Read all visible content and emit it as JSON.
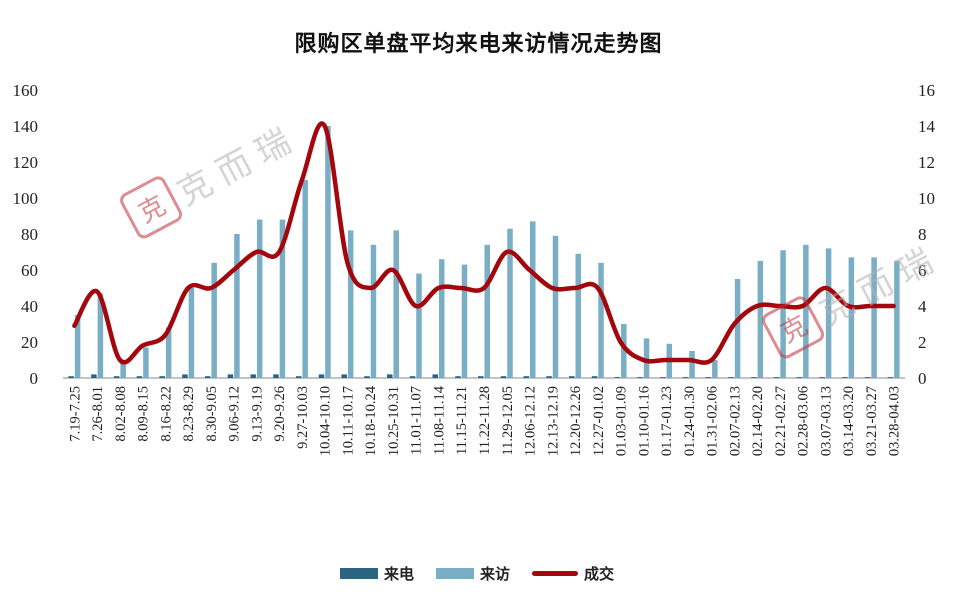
{
  "title": "限购区单盘平均来电来访情况走势图",
  "watermark": {
    "seal": "克",
    "text": "克而瑞"
  },
  "colors": {
    "calls": "#2a6480",
    "visits": "#79aec5",
    "deals": "#a3070d"
  },
  "chart_data": {
    "type": "bar",
    "title": "限购区单盘平均来电来访情况走势图",
    "categories": [
      "7.19-7.25",
      "7.26-8.01",
      "8.02-8.08",
      "8.09-8.15",
      "8.16-8.22",
      "8.23-8.29",
      "8.30-9.05",
      "9.06-9.12",
      "9.13-9.19",
      "9.20-9.26",
      "9.27-10.03",
      "10.04-10.10",
      "10.11-10.17",
      "10.18-10.24",
      "10.25-10.31",
      "11.01-11.07",
      "11.08-11.14",
      "11.15-11.21",
      "11.22-11.28",
      "11.29-12.05",
      "12.06-12.12",
      "12.13-12.19",
      "12.20-12.26",
      "12.27-01.02",
      "01.03-01.09",
      "01.10-01.16",
      "01.17-01.23",
      "01.24-01.30",
      "01.31-02.06",
      "02.07-02.13",
      "02.14-02.20",
      "02.21-02.27",
      "02.28-03.06",
      "03.07-03.13",
      "03.14-03.20",
      "03.21-03.27",
      "03.28-04.03"
    ],
    "series": [
      {
        "name": "来电",
        "axis": "left",
        "kind": "bar",
        "values": [
          1,
          2,
          1,
          1,
          1,
          2,
          1,
          2,
          2,
          2,
          1,
          2,
          2,
          1,
          2,
          1,
          2,
          1,
          1,
          1,
          1,
          1,
          1,
          1,
          0.5,
          0.5,
          0.5,
          0.5,
          0.5,
          0.5,
          0.5,
          0.5,
          0.5,
          0.5,
          0.5,
          0.5,
          0.5
        ]
      },
      {
        "name": "来访",
        "axis": "left",
        "kind": "bar",
        "values": [
          35,
          47,
          8,
          17,
          28,
          50,
          64,
          80,
          88,
          88,
          110,
          140,
          82,
          74,
          82,
          58,
          66,
          63,
          74,
          83,
          87,
          79,
          69,
          64,
          30,
          22,
          19,
          15,
          10,
          55,
          65,
          71,
          74,
          72,
          67,
          67,
          65
        ]
      },
      {
        "name": "成交",
        "axis": "right",
        "kind": "line",
        "values": [
          2.9,
          4.8,
          1,
          1.8,
          2.4,
          5,
          5,
          6,
          7,
          7,
          11,
          14,
          6.4,
          5,
          6,
          4,
          5,
          5,
          5,
          7,
          6,
          5,
          5,
          5,
          2,
          1,
          1,
          1,
          1,
          3,
          4,
          4,
          4,
          5,
          4,
          4,
          4
        ]
      }
    ],
    "yleft": {
      "lim": [
        0,
        160
      ],
      "ticks": [
        0,
        20,
        40,
        60,
        80,
        100,
        120,
        140,
        160
      ]
    },
    "yright": {
      "lim": [
        0,
        16
      ],
      "ticks": [
        0,
        2,
        4,
        6,
        8,
        10,
        12,
        14,
        16
      ]
    },
    "grid": false,
    "legend_position": "bottom"
  }
}
